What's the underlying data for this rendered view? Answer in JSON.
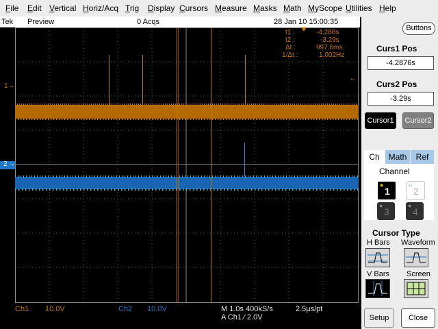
{
  "menu": {
    "items": [
      "File",
      "Edit",
      "Vertical",
      "Horiz/Acq",
      "Trig",
      "Display",
      "Cursors",
      "Measure",
      "Masks",
      "Math",
      "MyScope",
      "Utilities",
      "Help"
    ]
  },
  "status": {
    "brand": "Tek",
    "mode": "Preview",
    "acqs": "0 Acqs",
    "datetime": "28 Jan 10 15:00:35",
    "buttons_label": "Buttons"
  },
  "readouts": {
    "t1_label": "t1 :",
    "t1_value": "-4.288s",
    "t2_label": "t2 :",
    "t2_value": "-3.29s",
    "dt_label": "Δt :",
    "dt_value": "997.6ms",
    "inv_label": "1/Δt :",
    "inv_value": "1.002Hz"
  },
  "markers": {
    "ch1": "1",
    "ch2": "2"
  },
  "bottom": {
    "ch1_label": "Ch1",
    "ch1_scale": "10.0V",
    "ch2_label": "Ch2",
    "ch2_scale": "10.0V",
    "timebase": "M 1.0s 400kS/s",
    "trigger": "A  Ch1  ∕  2.0V",
    "pt": "2.5µs/pt"
  },
  "panel": {
    "cursor1_title": "Curs1 Pos",
    "cursor1_value": "-4.2876s",
    "cursor2_title": "Curs2 Pos",
    "cursor2_value": "-3.29s",
    "cursor1_btn": "Cursor1",
    "cursor2_btn": "Cursor2",
    "tabs": [
      "Ch",
      "Math",
      "Ref"
    ],
    "channel_title": "Channel",
    "channels": [
      "1",
      "2",
      "3",
      "4"
    ],
    "cursor_type_title": "Cursor Type",
    "types": [
      "H Bars",
      "Waveform",
      "V Bars",
      "Screen"
    ],
    "setup": "Setup",
    "close": "Close"
  },
  "colors": {
    "ch1": "#c87800",
    "ch2": "#1e78c8",
    "grid": "#808080"
  }
}
